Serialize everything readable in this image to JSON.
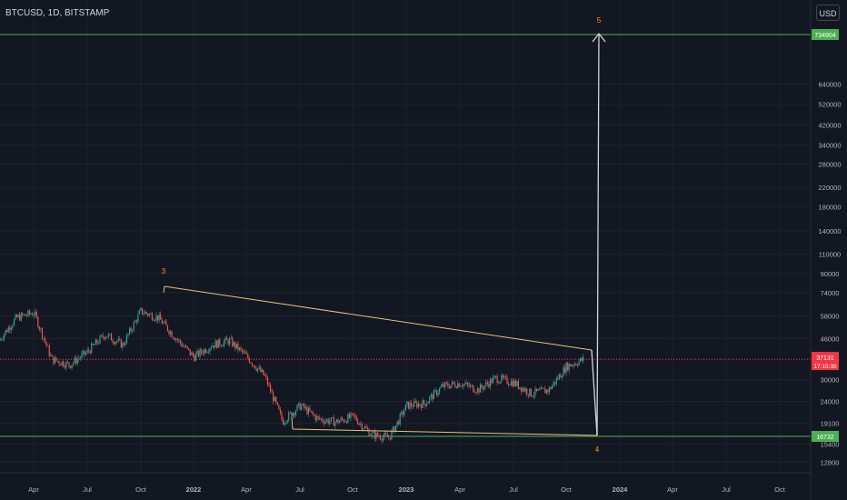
{
  "header": {
    "symbol_title": "BTCUSD, 1D, BITSTAMP",
    "currency_label": "USD"
  },
  "chart_data": {
    "type": "candlestick",
    "title": "BTCUSD, 1D, BITSTAMP",
    "x_ticks": [
      "Apr",
      "Jul",
      "Oct",
      "2022",
      "Apr",
      "Jul",
      "Oct",
      "2023",
      "Apr",
      "Jul",
      "Oct",
      "2024",
      "Apr",
      "Jul",
      "Oct"
    ],
    "y_scale": "log",
    "y_ticks": [
      12800,
      15400,
      19100,
      24000,
      30000,
      37000,
      46000,
      58000,
      74000,
      90000,
      110000,
      140000,
      180000,
      220000,
      280000,
      340000,
      420000,
      520000,
      640000
    ],
    "current_price": {
      "value": "37131",
      "countdown": "17:15:39",
      "color": "#f23645"
    },
    "horizontal_levels": [
      {
        "value": "734904",
        "color": "#4caf50"
      },
      {
        "value": "16732",
        "color": "#4caf50"
      }
    ],
    "wave_labels": [
      "3",
      "4",
      "5"
    ],
    "wave_label_color": "#ff9800",
    "series": [
      {
        "name": "",
        "points": [
          [
            "2021-01",
            33000
          ],
          [
            "2021-02",
            45000
          ],
          [
            "2021-03",
            57000
          ],
          [
            "2021-04",
            60000
          ],
          [
            "2021-05",
            37000
          ],
          [
            "2021-06",
            35000
          ],
          [
            "2021-07",
            40000
          ],
          [
            "2021-08",
            48000
          ],
          [
            "2021-09",
            43000
          ],
          [
            "2021-10",
            61000
          ],
          [
            "2021-11",
            57000
          ],
          [
            "2021-12",
            46000
          ],
          [
            "2022-01",
            38000
          ],
          [
            "2022-02",
            43000
          ],
          [
            "2022-03",
            45000
          ],
          [
            "2022-04",
            38000
          ],
          [
            "2022-05",
            31000
          ],
          [
            "2022-06",
            19500
          ],
          [
            "2022-07",
            23000
          ],
          [
            "2022-08",
            20000
          ],
          [
            "2022-09",
            19400
          ],
          [
            "2022-10",
            20500
          ],
          [
            "2022-11",
            17000
          ],
          [
            "2022-12",
            16500
          ],
          [
            "2023-01",
            23000
          ],
          [
            "2023-02",
            23500
          ],
          [
            "2023-03",
            28000
          ],
          [
            "2023-04",
            29000
          ],
          [
            "2023-05",
            27000
          ],
          [
            "2023-06",
            30500
          ],
          [
            "2023-07",
            29200
          ],
          [
            "2023-08",
            26000
          ],
          [
            "2023-09",
            27000
          ],
          [
            "2023-10",
            34500
          ],
          [
            "2023-11",
            37131
          ]
        ]
      }
    ],
    "line_colors": {
      "wedge": "#e6c27a",
      "projection_arrow": "#d1d4dc",
      "up_candle": "#26a69a",
      "down_candle": "#ef5350"
    }
  }
}
